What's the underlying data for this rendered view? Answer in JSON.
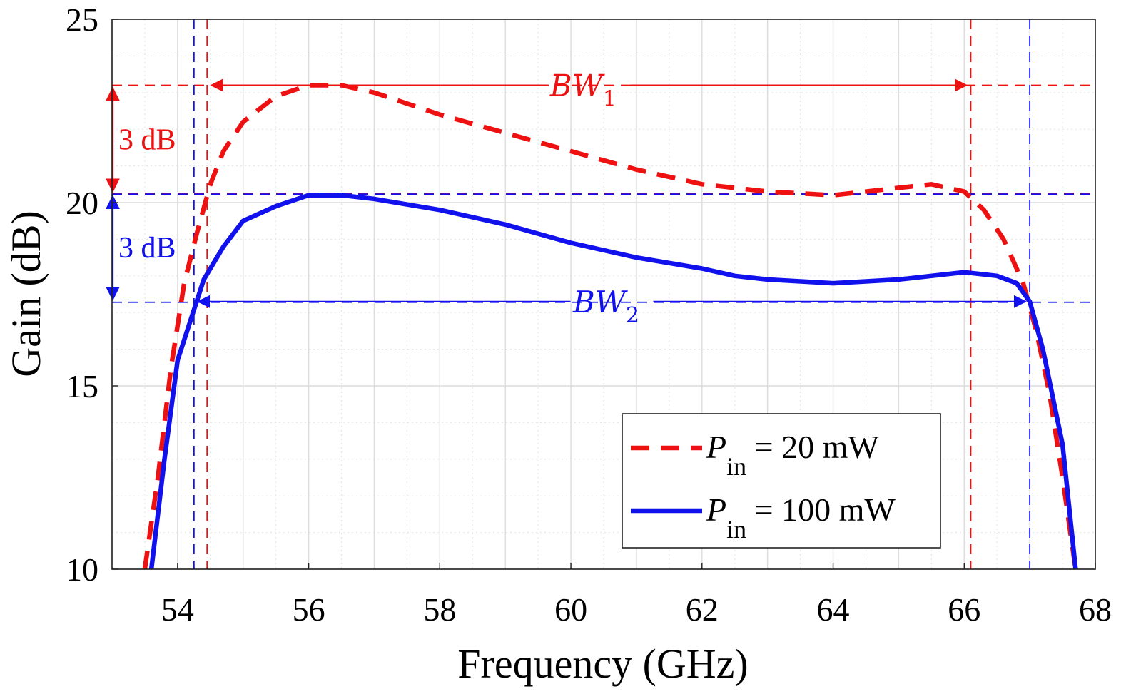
{
  "chart_data": {
    "type": "line",
    "xlabel": "Frequency (GHz)",
    "ylabel": "Gain (dB)",
    "xlim": [
      53,
      68
    ],
    "ylim": [
      10,
      25
    ],
    "xticks": [
      54,
      56,
      58,
      60,
      62,
      64,
      66,
      68
    ],
    "yticks": [
      10,
      15,
      20,
      25
    ],
    "grid": true,
    "legend_position": "bottom-right",
    "colors": {
      "red": "#ee1111",
      "blue": "#1111ee"
    },
    "series": [
      {
        "name": "P_in = 20 mW",
        "legend_symbol": "P",
        "legend_subscript": "in",
        "legend_value": "= 20 mW",
        "style": "dashed",
        "color": "#ee1111",
        "x": [
          53.5,
          53.7,
          53.9,
          54.1,
          54.3,
          54.5,
          54.7,
          55.0,
          55.5,
          56.0,
          56.5,
          57.0,
          58.0,
          59.0,
          60.0,
          61.0,
          62.0,
          63.0,
          64.0,
          65.0,
          65.5,
          66.0,
          66.3,
          66.6,
          66.9,
          67.1,
          67.3,
          67.5,
          67.7
        ],
        "y": [
          10.0,
          12.5,
          15.5,
          17.8,
          19.2,
          20.5,
          21.4,
          22.2,
          22.9,
          23.2,
          23.2,
          23.0,
          22.4,
          21.9,
          21.4,
          20.9,
          20.5,
          20.3,
          20.2,
          20.4,
          20.5,
          20.3,
          19.8,
          19.0,
          17.8,
          16.5,
          14.8,
          12.5,
          10.0
        ]
      },
      {
        "name": "P_in = 100 mW",
        "legend_symbol": "P",
        "legend_subscript": "in",
        "legend_value": "= 100 mW",
        "style": "solid",
        "color": "#1111ee",
        "x": [
          53.6,
          53.8,
          54.0,
          54.2,
          54.4,
          54.7,
          55.0,
          55.5,
          56.0,
          56.5,
          57.0,
          58.0,
          59.0,
          60.0,
          61.0,
          62.0,
          62.5,
          63.0,
          64.0,
          65.0,
          66.0,
          66.5,
          66.8,
          67.0,
          67.2,
          67.5,
          67.7
        ],
        "y": [
          10.0,
          13.0,
          15.7,
          16.8,
          17.9,
          18.8,
          19.5,
          19.9,
          20.2,
          20.2,
          20.1,
          19.8,
          19.4,
          18.9,
          18.5,
          18.2,
          18.0,
          17.9,
          17.8,
          17.9,
          18.1,
          18.0,
          17.8,
          17.3,
          16.0,
          13.4,
          10.0
        ]
      }
    ],
    "reference_lines": {
      "red_horizontal": [
        23.2,
        20.25
      ],
      "blue_horizontal": [
        20.25,
        17.3
      ],
      "red_vertical": [
        54.45,
        66.1
      ],
      "blue_vertical": [
        54.25,
        67.0
      ]
    },
    "annotations": {
      "bw1": {
        "main": "BW",
        "sub": "1",
        "y": 23.2,
        "x_from": 54.45,
        "x_to": 66.1
      },
      "bw2": {
        "main": "BW",
        "sub": "2",
        "y": 17.3,
        "x_from": 54.25,
        "x_to": 67.0
      },
      "red_3db": {
        "text": "3 dB",
        "from": 20.25,
        "to": 23.2,
        "x": 53.0
      },
      "blue_3db": {
        "text": "3 dB",
        "from": 17.3,
        "to": 20.25,
        "x": 53.0
      }
    }
  }
}
